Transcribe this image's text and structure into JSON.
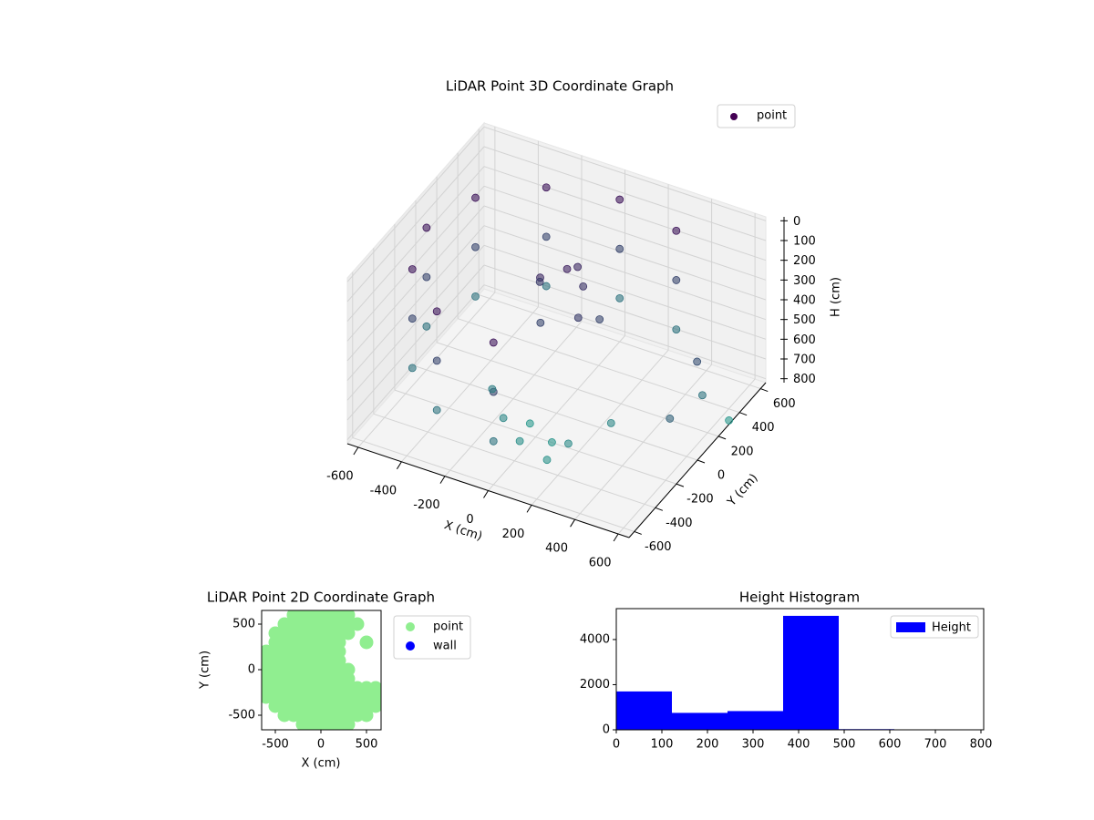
{
  "chart_data": [
    {
      "type": "scatter3d",
      "title": "LiDAR Point 3D Coordinate Graph",
      "xlabel": "X (cm)",
      "ylabel": "Y (cm)",
      "zlabel": "H (cm)",
      "xlim": [
        -650,
        650
      ],
      "ylim": [
        -650,
        650
      ],
      "zlim": [
        -20,
        820
      ],
      "z_inverted": true,
      "xticks": [
        -600,
        -400,
        -200,
        0,
        200,
        400,
        600
      ],
      "yticks": [
        -600,
        -400,
        -200,
        0,
        200,
        400,
        600
      ],
      "zticks": [
        0,
        100,
        200,
        300,
        400,
        500,
        600,
        700,
        800
      ],
      "grid": true,
      "legend": "upper right",
      "series": [
        {
          "name": "point",
          "color_range": [
            "#440154",
            "#2a9d8f"
          ],
          "x": [
            300,
            0,
            -300,
            -520,
            -600,
            -520,
            -300,
            0,
            300,
            0,
            -300,
            -520,
            -600,
            -520,
            -300,
            0,
            300,
            0,
            -300,
            -520,
            -600,
            -520,
            -300,
            0,
            0,
            -100,
            50,
            100,
            -50,
            0,
            -150,
            150,
            -100,
            0,
            100,
            200,
            -200,
            300,
            -50,
            150,
            600,
            600,
            650,
            620
          ],
          "y": [
            520,
            600,
            520,
            300,
            0,
            -300,
            -520,
            -600,
            520,
            600,
            520,
            300,
            0,
            -300,
            -520,
            -600,
            520,
            600,
            520,
            300,
            0,
            -300,
            -520,
            -600,
            100,
            50,
            150,
            0,
            -50,
            200,
            150,
            100,
            -300,
            -350,
            -250,
            -300,
            -200,
            -100,
            -150,
            -400,
            100,
            150,
            300,
            -200
          ],
          "z": [
            100,
            100,
            100,
            100,
            100,
            100,
            100,
            100,
            350,
            350,
            350,
            350,
            350,
            350,
            350,
            350,
            600,
            600,
            600,
            600,
            600,
            600,
            600,
            600,
            150,
            200,
            250,
            300,
            350,
            200,
            300,
            350,
            700,
            750,
            780,
            720,
            650,
            700,
            800,
            760,
            400,
            600,
            800,
            500
          ]
        }
      ]
    },
    {
      "type": "scatter",
      "title": "LiDAR Point 2D Coordinate Graph",
      "xlabel": "X (cm)",
      "ylabel": "Y (cm)",
      "xlim": [
        -650,
        660
      ],
      "ylim": [
        -660,
        650
      ],
      "xticks": [
        -500,
        0,
        500
      ],
      "yticks": [
        -500,
        0,
        500
      ],
      "legend": "outside right",
      "series": [
        {
          "name": "point",
          "color": "#90ee90",
          "x": [
            -300,
            -200,
            -100,
            0,
            100,
            200,
            300,
            -400,
            -300,
            -200,
            -100,
            0,
            100,
            200,
            300,
            400,
            -500,
            -400,
            -300,
            -200,
            -100,
            0,
            100,
            200,
            300,
            -500,
            -400,
            -300,
            -200,
            -100,
            0,
            100,
            200,
            500,
            -600,
            -500,
            -400,
            -300,
            -200,
            -100,
            0,
            100,
            200,
            -600,
            -500,
            -400,
            -300,
            -200,
            -100,
            0,
            100,
            200,
            -600,
            -500,
            -400,
            -300,
            -200,
            -100,
            0,
            100,
            200,
            300,
            -600,
            -500,
            -400,
            -300,
            -200,
            -100,
            0,
            100,
            200,
            300,
            -600,
            -500,
            -400,
            -300,
            -200,
            -100,
            0,
            100,
            200,
            300,
            400,
            500,
            600,
            -600,
            -500,
            -400,
            -300,
            -200,
            -100,
            0,
            100,
            200,
            300,
            400,
            500,
            600,
            -500,
            -400,
            -300,
            -200,
            -100,
            0,
            100,
            200,
            300,
            400,
            500,
            600,
            -400,
            -300,
            -200,
            -100,
            0,
            100,
            200,
            300,
            400,
            500,
            -200,
            -100,
            0,
            100,
            200,
            300
          ],
          "y": [
            600,
            600,
            600,
            600,
            600,
            600,
            600,
            500,
            500,
            500,
            500,
            500,
            500,
            500,
            500,
            500,
            400,
            400,
            400,
            400,
            400,
            400,
            400,
            400,
            400,
            300,
            300,
            300,
            300,
            300,
            300,
            300,
            300,
            300,
            200,
            200,
            200,
            200,
            200,
            200,
            200,
            200,
            200,
            100,
            100,
            100,
            100,
            100,
            100,
            100,
            100,
            100,
            0,
            0,
            0,
            0,
            0,
            0,
            0,
            0,
            0,
            0,
            -100,
            -100,
            -100,
            -100,
            -100,
            -100,
            -100,
            -100,
            -100,
            -100,
            -200,
            -200,
            -200,
            -200,
            -200,
            -200,
            -200,
            -200,
            -200,
            -200,
            -200,
            -200,
            -200,
            -300,
            -300,
            -300,
            -300,
            -300,
            -300,
            -300,
            -300,
            -300,
            -300,
            -300,
            -300,
            -300,
            -400,
            -400,
            -400,
            -400,
            -400,
            -400,
            -400,
            -400,
            -400,
            -400,
            -400,
            -400,
            -500,
            -500,
            -500,
            -500,
            -500,
            -500,
            -500,
            -500,
            -500,
            -500,
            -600,
            -600,
            -600,
            -600,
            -600,
            -600
          ]
        },
        {
          "name": "wall",
          "color": "#0000ff",
          "x": [],
          "y": []
        }
      ]
    },
    {
      "type": "histogram",
      "title": "Height Histogram",
      "xlim": [
        0,
        806
      ],
      "ylim": [
        0,
        5370
      ],
      "xticks": [
        0,
        100,
        200,
        300,
        400,
        500,
        600,
        700,
        800
      ],
      "yticks": [
        0,
        2000,
        4000
      ],
      "legend": "upper right",
      "series": [
        {
          "name": "Height",
          "color": "#0000ff",
          "bins": [
            0,
            122,
            244,
            366,
            488,
            610,
            732
          ],
          "counts": [
            1700,
            750,
            830,
            5050,
            30,
            5
          ]
        }
      ]
    }
  ]
}
